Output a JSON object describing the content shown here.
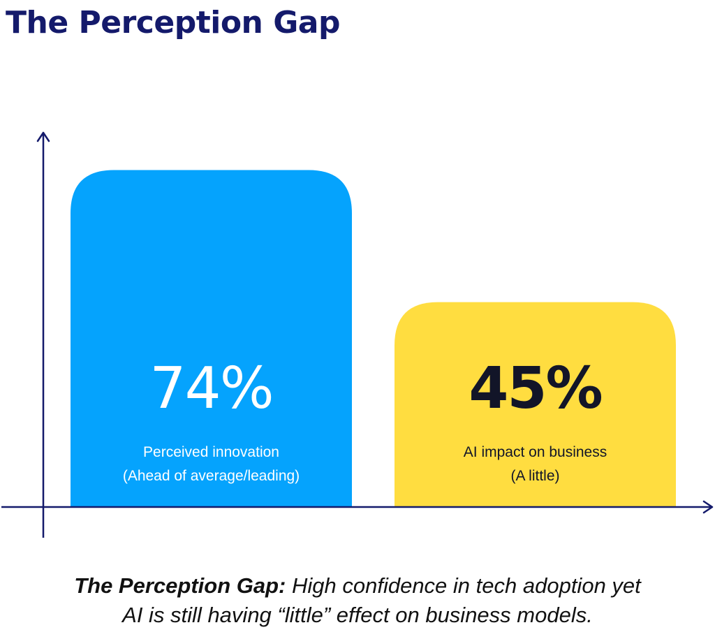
{
  "title": "The Perception Gap",
  "colors": {
    "title": "#141a6b",
    "axis": "#141a6b",
    "value_light": "#ffffff",
    "value_dark": "#121528",
    "label_light": "#ffffff",
    "label_dark": "#121528"
  },
  "chart_data": {
    "type": "bar",
    "categories": [
      "Perceived innovation (Ahead of average/leading)",
      "AI impact on business (A little)"
    ],
    "values": [
      74,
      45
    ],
    "value_labels": [
      "74%",
      "45%"
    ],
    "label_lines": [
      [
        "Perceived innovation",
        "(Ahead of average/leading)"
      ],
      [
        "AI impact on business",
        "(A little)"
      ]
    ],
    "bar_colors": [
      "#05a3fd",
      "#ffdd40"
    ],
    "ylim": [
      0,
      100
    ],
    "grid": false,
    "legend": "none",
    "xlabel": "",
    "ylabel": ""
  },
  "caption": {
    "lead": "The Perception Gap:",
    "line1_rest": " High confidence in tech adoption yet",
    "line2": "AI is still having “little” effect on business models."
  }
}
